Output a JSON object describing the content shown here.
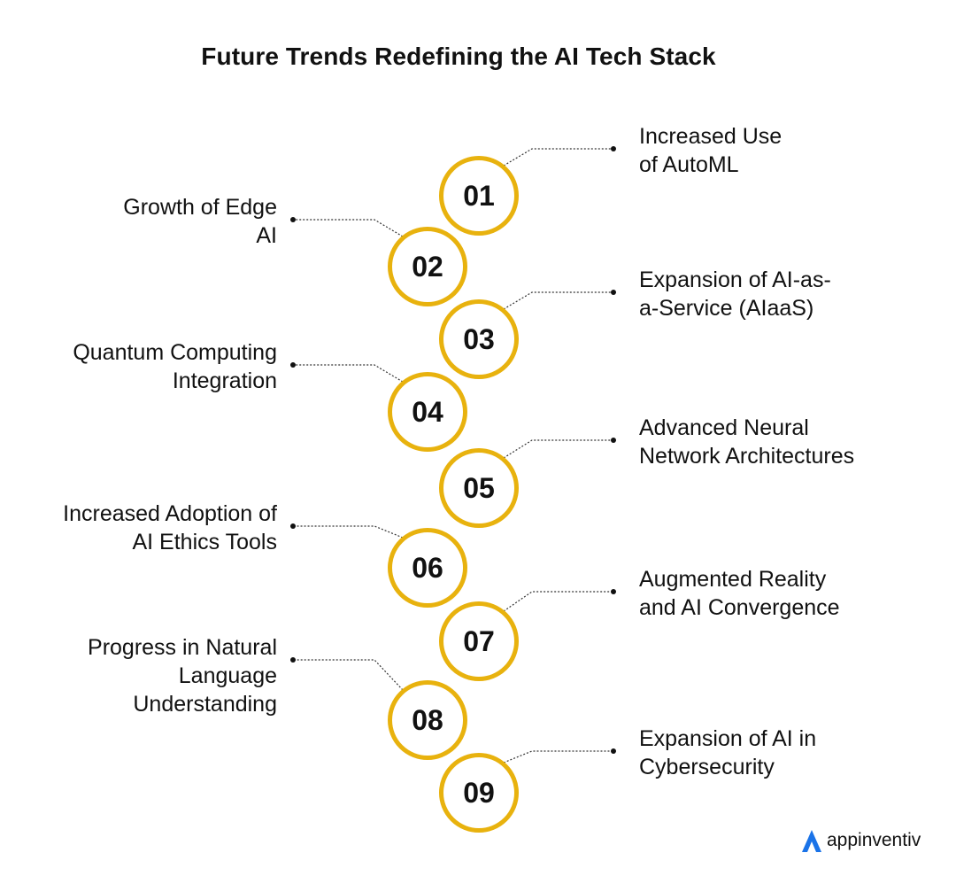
{
  "title": "Future Trends Redefining the AI Tech Stack",
  "items": [
    {
      "number": "01",
      "side": "right",
      "lines": [
        "Increased Use",
        "of AutoML"
      ]
    },
    {
      "number": "02",
      "side": "left",
      "lines": [
        "Growth of Edge",
        "AI"
      ]
    },
    {
      "number": "03",
      "side": "right",
      "lines": [
        "Expansion of AI-as-",
        "a-Service (AIaaS)"
      ]
    },
    {
      "number": "04",
      "side": "left",
      "lines": [
        "Quantum Computing",
        "Integration"
      ]
    },
    {
      "number": "05",
      "side": "right",
      "lines": [
        "Advanced Neural",
        "Network Architectures"
      ]
    },
    {
      "number": "06",
      "side": "left",
      "lines": [
        "Increased Adoption of",
        "AI Ethics Tools"
      ]
    },
    {
      "number": "07",
      "side": "right",
      "lines": [
        "Augmented Reality",
        "and AI Convergence"
      ]
    },
    {
      "number": "08",
      "side": "left",
      "lines": [
        "Progress in Natural",
        "Language",
        "Understanding"
      ]
    },
    {
      "number": "09",
      "side": "right",
      "lines": [
        "Expansion of AI in",
        "Cybersecurity"
      ]
    }
  ],
  "brand": {
    "name": "appinventiv",
    "icon": "appinventiv-logo-icon"
  },
  "colors": {
    "accent": "#e8b20e",
    "connector": "#333333",
    "logo": "#1a73e8"
  }
}
